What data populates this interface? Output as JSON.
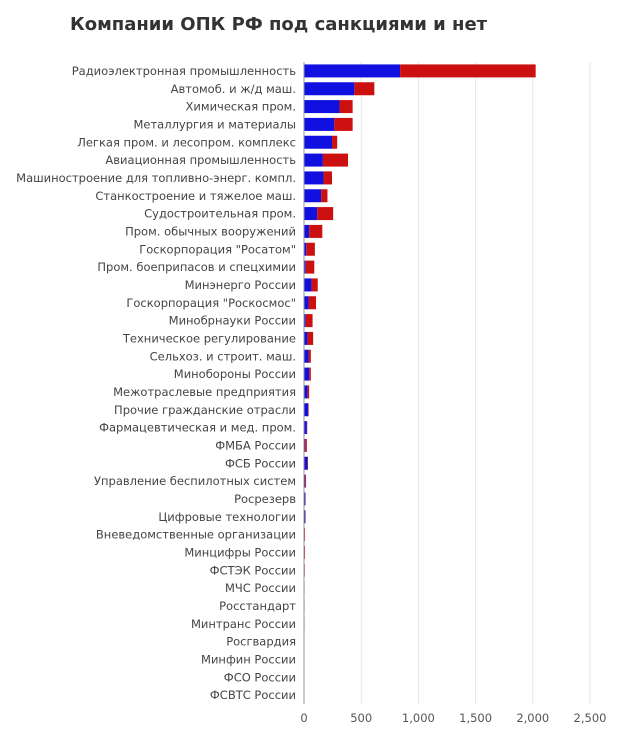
{
  "chart_data": {
    "type": "bar",
    "orientation": "horizontal",
    "stacked": true,
    "title": "Компании ОПК РФ под санкциями и нет",
    "xlabel": "",
    "ylabel": "",
    "xlim": [
      0,
      2500
    ],
    "x_ticks": [
      0,
      500,
      1000,
      1500,
      2000,
      2500
    ],
    "x_tick_labels": [
      "0",
      "500",
      "1,000",
      "1,500",
      "2,000",
      "2,500"
    ],
    "grid": true,
    "legend": "none",
    "categories": [
      "Радиоэлектронная промышленность",
      "Автомоб. и ж/д маш.",
      "Химическая пром.",
      "Металлургия и материалы",
      "Легкая пром. и лесопром. комплекс",
      "Авиационная промышленность",
      "Машиностроение для топливно-энерг. компл.",
      "Станкостроение и тяжелое маш.",
      "Судостроительная пром.",
      "Пром. обычных вооружений",
      "Госкорпорация \"Росатом\"",
      "Пром. боеприпасов и спецхимии",
      "Минэнерго России",
      "Госкорпорация \"Роскосмос\"",
      "Минобрнауки России",
      "Техническое регулирование",
      "Сельхоз. и строит. маш.",
      "Минобороны России",
      "Межотраслевые предприятия",
      "Прочие гражданские отрасли",
      "Фармацевтическая и мед. пром.",
      "ФМБА России",
      "ФСБ России",
      "Управление беспилотных систем",
      "Росрезерв",
      "Цифровые технологии",
      "Вневедомственные организации",
      "Минцифры России",
      "ФСТЭК России",
      "МЧС России",
      "Росстандарт",
      "Минтранс России",
      "Росгвардия",
      "Минфин России",
      "ФСО России",
      "ФСВТС России"
    ],
    "series": [
      {
        "color": "#1010e0",
        "values": [
          840,
          440,
          310,
          265,
          245,
          165,
          170,
          150,
          115,
          45,
          20,
          15,
          65,
          40,
          15,
          30,
          40,
          45,
          30,
          35,
          25,
          10,
          30,
          10,
          12,
          12,
          5,
          5,
          4,
          3,
          3,
          3,
          2,
          2,
          2,
          2
        ]
      },
      {
        "color": "#cc1010",
        "values": [
          1185,
          175,
          115,
          160,
          45,
          220,
          75,
          55,
          140,
          115,
          75,
          75,
          55,
          65,
          60,
          50,
          20,
          15,
          15,
          5,
          3,
          15,
          5,
          8,
          2,
          2,
          4,
          4,
          3,
          2,
          2,
          2,
          2,
          1,
          1,
          1
        ]
      }
    ]
  }
}
